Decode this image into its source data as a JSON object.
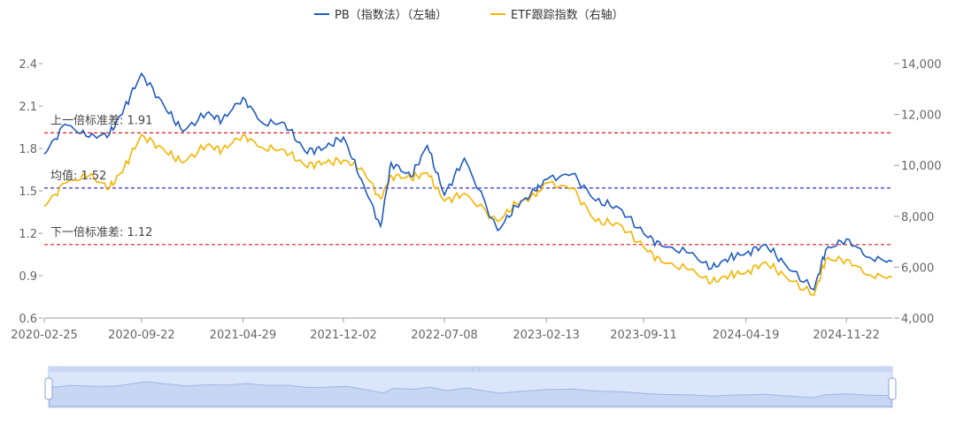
{
  "colors": {
    "pb": "#1f5bbf",
    "etf": "#f5b400",
    "std_line": "#e31a1c",
    "mean_line": "#1a1acc",
    "axis": "#999999",
    "slider_fill": "#dbe6fb",
    "slider_line": "#9fb6e6"
  },
  "chart_data": {
    "type": "line",
    "legend": {
      "position": "top-center",
      "items": [
        "PB（指数法）（左轴）",
        "ETF跟踪指数（右轴）"
      ]
    },
    "x_tick_labels": [
      "2020-02-25",
      "2020-09-22",
      "2021-04-29",
      "2021-12-02",
      "2022-07-08",
      "2023-02-13",
      "2023-09-11",
      "2024-04-19",
      "2024-11-22"
    ],
    "x": [
      "2020-02-25",
      "2020-04-10",
      "2020-06-01",
      "2020-07-15",
      "2020-08-15",
      "2020-09-22",
      "2020-11-10",
      "2020-12-20",
      "2021-02-10",
      "2021-03-15",
      "2021-04-29",
      "2021-06-10",
      "2021-07-28",
      "2021-09-10",
      "2021-10-20",
      "2021-12-02",
      "2022-01-10",
      "2022-02-20",
      "2022-03-15",
      "2022-04-27",
      "2022-06-01",
      "2022-07-08",
      "2022-08-20",
      "2022-10-31",
      "2022-12-10",
      "2023-01-20",
      "2023-02-13",
      "2023-04-10",
      "2023-05-31",
      "2023-07-20",
      "2023-09-11",
      "2023-10-20",
      "2023-12-20",
      "2024-02-05",
      "2024-03-15",
      "2024-04-19",
      "2024-06-01",
      "2024-07-15",
      "2024-09-13",
      "2024-10-08",
      "2024-11-22",
      "2025-01-10",
      "2025-03-01"
    ],
    "series": [
      {
        "name": "PB（指数法）（左轴）",
        "axis": "left",
        "values": [
          1.76,
          1.97,
          1.88,
          1.9,
          2.08,
          2.33,
          2.1,
          1.92,
          2.05,
          2.0,
          2.16,
          1.98,
          1.98,
          1.78,
          1.8,
          1.88,
          1.58,
          1.25,
          1.7,
          1.6,
          1.82,
          1.47,
          1.73,
          1.22,
          1.39,
          1.5,
          1.58,
          1.62,
          1.43,
          1.38,
          1.2,
          1.11,
          1.06,
          0.95,
          1.03,
          1.06,
          1.12,
          0.97,
          0.8,
          1.08,
          1.16,
          1.03,
          1.0
        ]
      },
      {
        "name": "ETF跟踪指数（右轴）",
        "axis": "right",
        "values": [
          8400,
          9300,
          9600,
          9100,
          9900,
          11200,
          10600,
          10100,
          10800,
          10600,
          11200,
          10700,
          10600,
          10000,
          10100,
          10200,
          9900,
          8700,
          9600,
          9500,
          9700,
          8600,
          8900,
          7800,
          8500,
          8800,
          9300,
          9100,
          7800,
          7700,
          6800,
          6200,
          5900,
          5400,
          5700,
          5800,
          6200,
          5600,
          4900,
          6300,
          6300,
          5700,
          5600
        ]
      }
    ],
    "y_left": {
      "range": [
        0.6,
        2.4
      ],
      "ticks": [
        "0.6",
        "0.9",
        "1.2",
        "1.5",
        "1.8",
        "2.1",
        "2.4"
      ]
    },
    "y_right": {
      "range": [
        4000,
        14000
      ],
      "ticks": [
        "4,000",
        "6,000",
        "8,000",
        "10,000",
        "12,000",
        "14,000"
      ]
    },
    "reference_lines": [
      {
        "label": "上一倍标准差: 1.91",
        "value": 1.91,
        "style": "dashed",
        "color": "red"
      },
      {
        "label": "均值: 1.52",
        "value": 1.52,
        "style": "dashed",
        "color": "blue"
      },
      {
        "label": "下一倍标准差: 1.12",
        "value": 1.12,
        "style": "dashed",
        "color": "red"
      }
    ],
    "grid": false,
    "zoom_slider": true
  }
}
